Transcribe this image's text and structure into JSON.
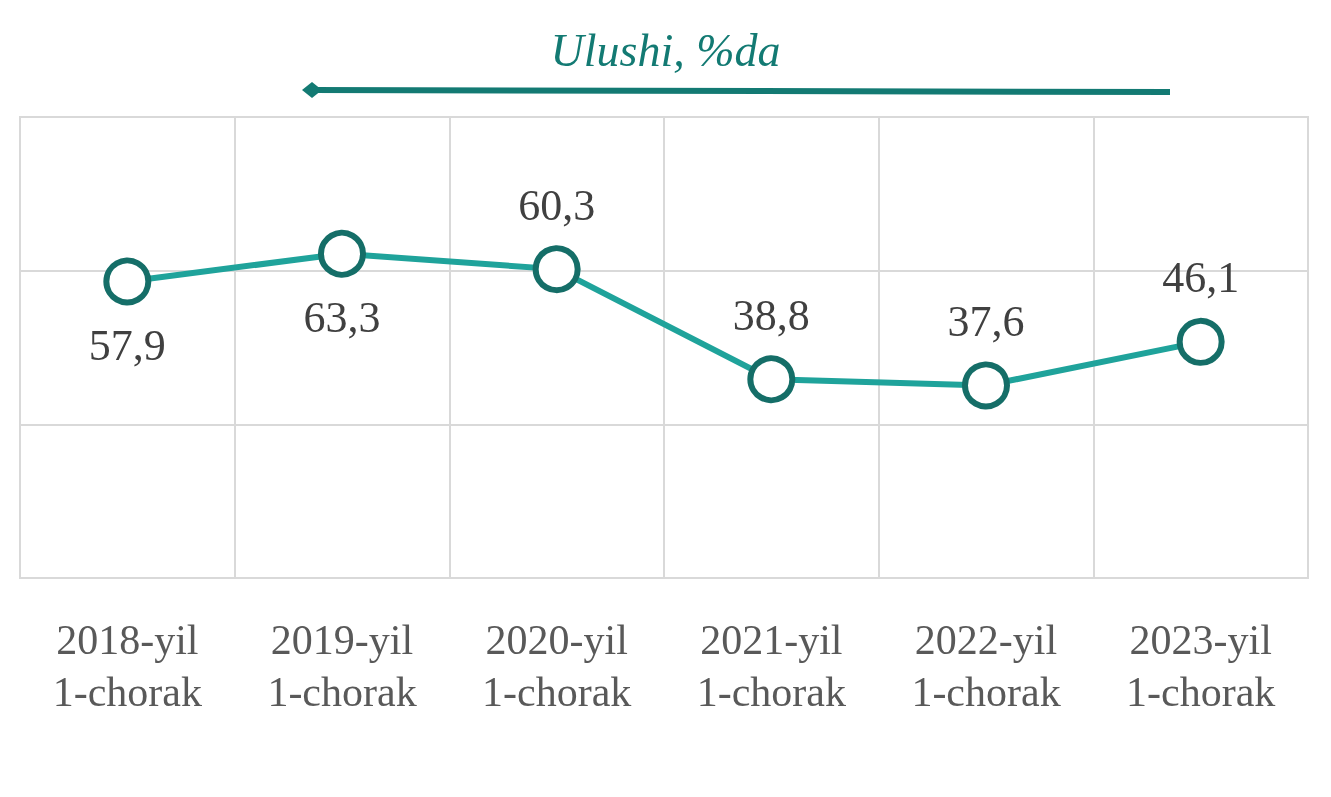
{
  "chart_data": {
    "type": "line",
    "title": "Ulushi, %da",
    "categories": [
      "2018-yil\n1-chorak",
      "2019-yil\n1-chorak",
      "2020-yil\n1-chorak",
      "2021-yil\n1-chorak",
      "2022-yil\n1-chorak",
      "2023-yil\n1-chorak"
    ],
    "series": [
      {
        "color": "#1fa39b",
        "values": [
          57.9,
          63.3,
          60.3,
          38.8,
          37.6,
          46.1
        ],
        "value_labels": [
          "57,9",
          "63,3",
          "60,3",
          "38,8",
          "37,6",
          "46,1"
        ]
      }
    ],
    "ylim": [
      0,
      90
    ],
    "yticks": [
      {
        "value": 0,
        "label": null
      },
      {
        "value": 30,
        "label": null
      },
      {
        "value": 60,
        "label": null
      },
      {
        "value": 90,
        "label": null
      }
    ],
    "tick_labels": "x",
    "grid": true,
    "marker": "circle",
    "line_style": "solid"
  }
}
